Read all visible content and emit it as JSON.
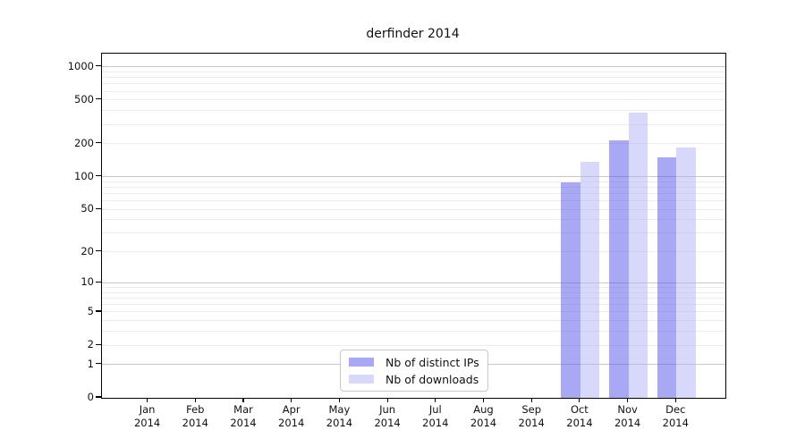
{
  "title": "derfinder 2014",
  "chart_data": {
    "type": "bar",
    "title": "derfinder 2014",
    "x_categories": [
      "Jan",
      "Feb",
      "Mar",
      "Apr",
      "May",
      "Jun",
      "Jul",
      "Aug",
      "Sep",
      "Oct",
      "Nov",
      "Dec"
    ],
    "x_year": "2014",
    "series": [
      {
        "name": "Nb of distinct IPs",
        "color": "#a9a9f5",
        "fill": "rgba(82,82,235,0.5)",
        "values": [
          0,
          0,
          0,
          0,
          0,
          0,
          0,
          0,
          0,
          89,
          215,
          150
        ]
      },
      {
        "name": "Nb of downloads",
        "color": "#d8d8fa",
        "fill": "rgba(177,177,245,0.5)",
        "values": [
          0,
          0,
          0,
          0,
          0,
          0,
          0,
          0,
          0,
          137,
          385,
          185
        ]
      }
    ],
    "y_ticks": [
      0,
      1,
      2,
      5,
      10,
      20,
      50,
      100,
      200,
      500,
      1000
    ],
    "y_scale": "log10(1+x)",
    "ylim": [
      0,
      1250
    ],
    "grid": true,
    "major_gridlines": [
      1,
      10,
      100,
      1000
    ],
    "legend_position": "bottom-center",
    "colors": {
      "axis": "#000000",
      "grid_minor": "#ececec",
      "grid_major": "#c8c8c8",
      "legend_border": "#c8c8c8",
      "text": "#111111"
    }
  }
}
